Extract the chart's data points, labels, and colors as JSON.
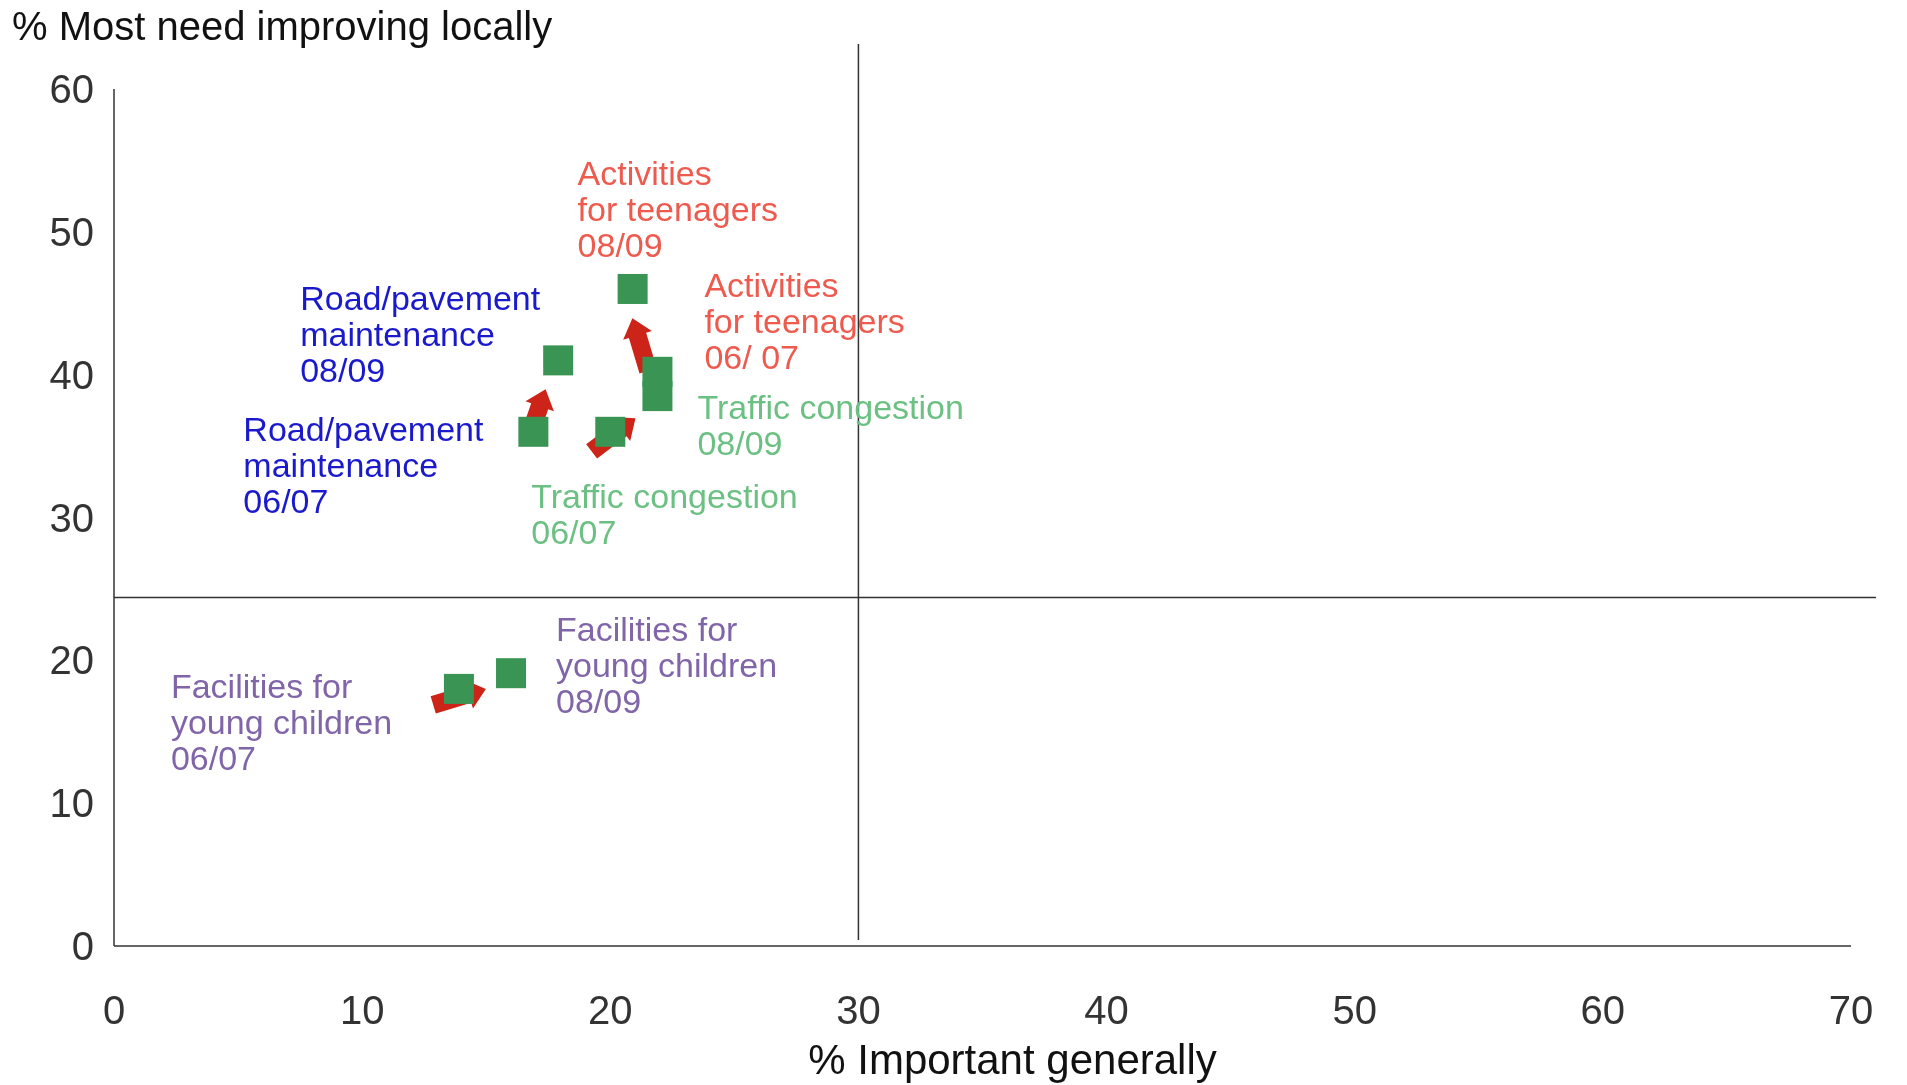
{
  "chart_data": {
    "type": "scatter",
    "xlabel": "% Important generally",
    "ylabel": "% Most need improving locally",
    "xlim": [
      0,
      70
    ],
    "ylim": [
      0,
      60
    ],
    "xticks": [
      0,
      10,
      20,
      30,
      40,
      50,
      60,
      70
    ],
    "yticks": [
      0,
      10,
      20,
      30,
      40,
      50,
      60
    ],
    "marker": "square",
    "x": [
      16.9,
      17.9,
      20.0,
      21.9,
      21.9,
      20.9,
      13.9,
      16.0
    ],
    "series": [
      {
        "color": "#3a9453",
        "values": [
          36.0,
          41.0,
          36.0,
          38.5,
          40.2,
          46.0,
          18.0,
          19.1
        ]
      }
    ],
    "ref_lines": [
      {
        "axis": "x",
        "value": 30,
        "color": "#333333"
      },
      {
        "axis": "y",
        "value": 24.4,
        "color": "#333333"
      }
    ],
    "annotations": [
      {
        "text": "Road/pavement\nmaintenance\n06/07",
        "x": 16.9,
        "y": 36.0
      },
      {
        "text": "Road/pavement\nmaintenance\n08/09",
        "x": 17.9,
        "y": 41.0
      },
      {
        "text": "Traffic congestion\n06/07",
        "x": 20.0,
        "y": 36.0
      },
      {
        "text": "Traffic congestion\n08/09",
        "x": 21.9,
        "y": 38.5
      },
      {
        "text": "Activities\nfor teenagers\n06/ 07",
        "x": 21.9,
        "y": 40.2
      },
      {
        "text": "Activities\nfor teenagers\n08/09",
        "x": 20.9,
        "y": 46.0
      },
      {
        "text": "Facilities for\nyoung children\n06/07",
        "x": 13.9,
        "y": 18.0
      },
      {
        "text": "Facilities for\nyoung children\n08/09",
        "x": 16.0,
        "y": 19.1
      }
    ]
  }
}
